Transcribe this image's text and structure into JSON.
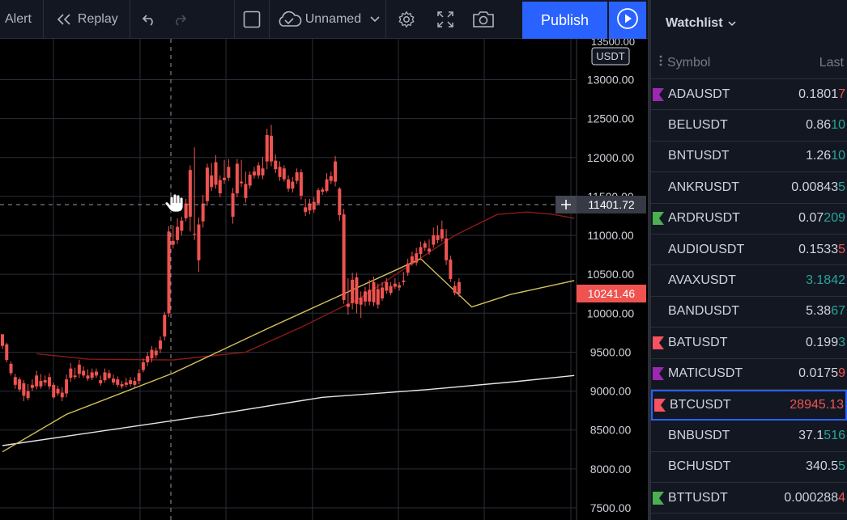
{
  "toolbar": {
    "alert": "Alert",
    "replay": "Replay",
    "layout_name": "Unnamed",
    "publish": "Publish"
  },
  "chart": {
    "currency": "USDT",
    "top_label": "13500.00",
    "crosshair_price": "11401.72",
    "last_price": "10241.46",
    "price_labels": [
      "13000.00",
      "12500.00",
      "12000.00",
      "11500.00",
      "11000.00",
      "10500.00",
      "10000.00",
      "9500.00",
      "9000.00",
      "8500.00",
      "8000.00",
      "7500.00"
    ],
    "colors": {
      "up": "#26a69a",
      "down": "#ef5350",
      "ma_fast": "#8b1a1a",
      "ma_mid": "#d4c05a",
      "ma_slow": "#e6e6e6"
    }
  },
  "chart_data": {
    "type": "candlestick",
    "y_axis_range": [
      7500,
      13500
    ],
    "candles": [
      [
        9730,
        9710,
        9580,
        9540
      ],
      [
        9600,
        9620,
        9400,
        9370
      ],
      [
        9350,
        9380,
        9230,
        9200
      ],
      [
        9180,
        9220,
        9080,
        9030
      ],
      [
        9150,
        9180,
        9020,
        8990
      ],
      [
        9100,
        9140,
        8940,
        8870
      ],
      [
        9000,
        9090,
        8910,
        8880
      ],
      [
        9080,
        9150,
        9040,
        9000
      ],
      [
        9200,
        9260,
        9060,
        9020
      ],
      [
        9130,
        9220,
        9060,
        9030
      ],
      [
        9140,
        9200,
        9110,
        9070
      ],
      [
        9180,
        9230,
        9060,
        9020
      ],
      [
        9080,
        9110,
        8920,
        8900
      ],
      [
        9030,
        9070,
        8970,
        8940
      ],
      [
        8980,
        9050,
        8920,
        8870
      ],
      [
        9150,
        9210,
        8970,
        8920
      ],
      [
        9290,
        9360,
        9170,
        9120
      ],
      [
        9200,
        9300,
        9180,
        9150
      ],
      [
        9340,
        9400,
        9220,
        9170
      ],
      [
        9260,
        9320,
        9200,
        9170
      ],
      [
        9200,
        9280,
        9160,
        9130
      ],
      [
        9240,
        9290,
        9170,
        9140
      ],
      [
        9250,
        9290,
        9200,
        9170
      ],
      [
        9140,
        9200,
        9100,
        9070
      ],
      [
        9240,
        9290,
        9140,
        9110
      ],
      [
        9230,
        9270,
        9170,
        9150
      ],
      [
        9160,
        9210,
        9110,
        9080
      ],
      [
        9150,
        9190,
        9080,
        9050
      ],
      [
        9090,
        9130,
        9060,
        9030
      ],
      [
        9110,
        9170,
        9080,
        9050
      ],
      [
        9140,
        9180,
        9090,
        9060
      ],
      [
        9130,
        9180,
        9080,
        9050
      ],
      [
        9230,
        9280,
        9130,
        9090
      ],
      [
        9370,
        9420,
        9270,
        9240
      ],
      [
        9450,
        9500,
        9370,
        9320
      ],
      [
        9530,
        9580,
        9420,
        9370
      ],
      [
        9520,
        9560,
        9460,
        9420
      ],
      [
        9650,
        9700,
        9540,
        9490
      ],
      [
        9980,
        10020,
        9700,
        9650
      ],
      [
        11050,
        11120,
        10000,
        9950
      ],
      [
        10930,
        11130,
        10880,
        10830
      ],
      [
        11110,
        11220,
        10940,
        10890
      ],
      [
        11190,
        11240,
        11060,
        11000
      ],
      [
        11410,
        11470,
        11220,
        11180
      ],
      [
        11840,
        11900,
        11240,
        11050
      ],
      [
        11020,
        12130,
        11010,
        10940
      ],
      [
        11140,
        11230,
        10680,
        10530
      ],
      [
        11410,
        11520,
        11180,
        11100
      ],
      [
        11870,
        11920,
        11440,
        11380
      ],
      [
        11770,
        11930,
        11620,
        11570
      ],
      [
        11940,
        12030,
        11650,
        11600
      ],
      [
        11710,
        11770,
        11540,
        11490
      ],
      [
        11740,
        11970,
        11710,
        11660
      ],
      [
        11880,
        11980,
        11740,
        11700
      ],
      [
        11540,
        11610,
        11240,
        11150
      ],
      [
        11920,
        11980,
        11540,
        11490
      ],
      [
        11690,
        11970,
        11670,
        11620
      ],
      [
        11660,
        11820,
        11480,
        11420
      ],
      [
        11780,
        11820,
        11640,
        11600
      ],
      [
        11820,
        11880,
        11770,
        11730
      ],
      [
        11900,
        11940,
        11770,
        11730
      ],
      [
        11860,
        12010,
        11770,
        11720
      ],
      [
        12290,
        12370,
        11950,
        11850
      ],
      [
        12280,
        12420,
        11950,
        11890
      ],
      [
        11960,
        12040,
        11850,
        11800
      ],
      [
        11880,
        11950,
        11750,
        11700
      ],
      [
        11860,
        11900,
        11720,
        11690
      ],
      [
        11720,
        11770,
        11600,
        11560
      ],
      [
        11690,
        11750,
        11600,
        11550
      ],
      [
        11810,
        11860,
        11700,
        11660
      ],
      [
        11810,
        11850,
        11510,
        11460
      ],
      [
        11360,
        11470,
        11300,
        11250
      ],
      [
        11410,
        11470,
        11320,
        11270
      ],
      [
        11430,
        11490,
        11330,
        11290
      ],
      [
        11580,
        11610,
        11410,
        11390
      ],
      [
        11590,
        11620,
        11560,
        11520
      ],
      [
        11720,
        11800,
        11570,
        11550
      ],
      [
        11760,
        11820,
        11700,
        11660
      ],
      [
        11950,
        12020,
        11690,
        11630
      ],
      [
        11600,
        11620,
        11260,
        11190
      ],
      [
        11270,
        11340,
        10170,
        10120
      ],
      [
        10120,
        10450,
        10080,
        9980
      ],
      [
        10430,
        10520,
        10130,
        10050
      ],
      [
        10460,
        10520,
        10120,
        10000
      ],
      [
        10200,
        10280,
        10110,
        9940
      ],
      [
        10280,
        10340,
        10150,
        10090
      ],
      [
        10300,
        10430,
        10150,
        10100
      ],
      [
        10400,
        10470,
        10140,
        10090
      ],
      [
        10310,
        10380,
        10110,
        10060
      ],
      [
        10330,
        10400,
        10190,
        10160
      ],
      [
        10400,
        10450,
        10290,
        10250
      ],
      [
        10350,
        10400,
        10260,
        10230
      ],
      [
        10380,
        10450,
        10340,
        10310
      ],
      [
        10360,
        10400,
        10330,
        10290
      ],
      [
        10420,
        10530,
        10400,
        10360
      ],
      [
        10640,
        10700,
        10520,
        10480
      ],
      [
        10730,
        10790,
        10640,
        10610
      ],
      [
        10770,
        10840,
        10650,
        10610
      ],
      [
        10850,
        10920,
        10760,
        10700
      ],
      [
        10900,
        10930,
        10840,
        10800
      ],
      [
        10830,
        10950,
        10790,
        10750
      ],
      [
        11000,
        11100,
        10880,
        10840
      ],
      [
        11000,
        11130,
        10940,
        10900
      ],
      [
        11080,
        11190,
        10960,
        10920
      ],
      [
        10960,
        11080,
        10680,
        10620
      ],
      [
        10690,
        10740,
        10440,
        10400
      ],
      [
        10350,
        10410,
        10260,
        10230
      ],
      [
        10400,
        10450,
        10250,
        10210
      ]
    ],
    "ma_fast": [
      [
        8,
        9480
      ],
      [
        20,
        9410
      ],
      [
        40,
        9400
      ],
      [
        57,
        9500
      ],
      [
        70,
        9820
      ],
      [
        84,
        10200
      ],
      [
        95,
        10600
      ],
      [
        106,
        11000
      ],
      [
        116,
        11270
      ],
      [
        123,
        11300
      ],
      [
        129,
        11270
      ],
      [
        134,
        11220
      ]
    ],
    "ma_mid": [
      [
        0,
        8220
      ],
      [
        15,
        8700
      ],
      [
        40,
        9230
      ],
      [
        62,
        9800
      ],
      [
        80,
        10250
      ],
      [
        98,
        10700
      ],
      [
        110,
        10080
      ],
      [
        119,
        10240
      ],
      [
        134,
        10420
      ]
    ],
    "ma_slow": [
      [
        0,
        8300
      ],
      [
        25,
        8500
      ],
      [
        50,
        8700
      ],
      [
        75,
        8920
      ],
      [
        100,
        9020
      ],
      [
        120,
        9120
      ],
      [
        134,
        9200
      ]
    ]
  },
  "watchlist": {
    "title": "Watchlist",
    "col_symbol": "Symbol",
    "col_last": "Last",
    "items": [
      {
        "symbol": "ADAUSDT",
        "price_main": "0.1801",
        "price_tail": "7",
        "tail_color": "dn",
        "flag": "#9c27b0"
      },
      {
        "symbol": "BELUSDT",
        "price_main": "0.86",
        "price_tail": "10",
        "tail_color": "up",
        "flag": ""
      },
      {
        "symbol": "BNTUSDT",
        "price_main": "1.26",
        "price_tail": "10",
        "tail_color": "up",
        "flag": ""
      },
      {
        "symbol": "ANKRUSDT",
        "price_main": "0.00843",
        "price_tail": "5",
        "tail_color": "up",
        "flag": ""
      },
      {
        "symbol": "ARDRUSDT",
        "price_main": "0.07",
        "price_tail": "209",
        "tail_color": "up",
        "flag": "#4caf50"
      },
      {
        "symbol": "AUDIOUSDT",
        "price_main": "0.1533",
        "price_tail": "5",
        "tail_color": "dn",
        "flag": ""
      },
      {
        "symbol": "AVAXUSDT",
        "price_main": "",
        "price_tail": "3.1842",
        "tail_color": "up",
        "flag": ""
      },
      {
        "symbol": "BANDUSDT",
        "price_main": "5.38",
        "price_tail": "67",
        "tail_color": "up",
        "flag": ""
      },
      {
        "symbol": "BATUSDT",
        "price_main": "0.199",
        "price_tail": "3",
        "tail_color": "up",
        "flag": "#f7525f"
      },
      {
        "symbol": "MATICUSDT",
        "price_main": "0.0175",
        "price_tail": "9",
        "tail_color": "dn",
        "flag": "#9c27b0"
      },
      {
        "symbol": "BTCUSDT",
        "price_main": "",
        "price_tail": "28945.13",
        "tail_color": "dn",
        "flag": "#f7525f",
        "selected": true
      },
      {
        "symbol": "BNBUSDT",
        "price_main": "37.1",
        "price_tail": "516",
        "tail_color": "up",
        "flag": ""
      },
      {
        "symbol": "BCHUSDT",
        "price_main": "340.5",
        "price_tail": "5",
        "tail_color": "up",
        "flag": ""
      },
      {
        "symbol": "BTTUSDT",
        "price_main": "0.000288",
        "price_tail": "4",
        "tail_color": "dn",
        "flag": "#4caf50"
      }
    ]
  }
}
